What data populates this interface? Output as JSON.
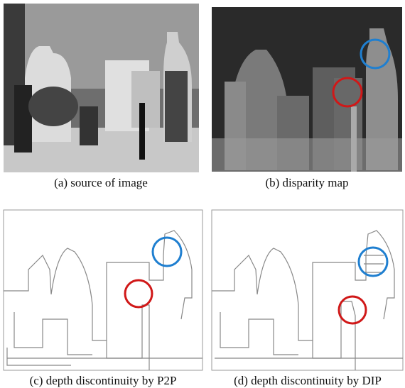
{
  "panels": [
    {
      "caption": "(a) source of image"
    },
    {
      "caption": "(b) disparity map"
    },
    {
      "caption": "(c) depth discontinuity by P2P"
    },
    {
      "caption": "(d) depth discontinuity by DIP"
    }
  ]
}
